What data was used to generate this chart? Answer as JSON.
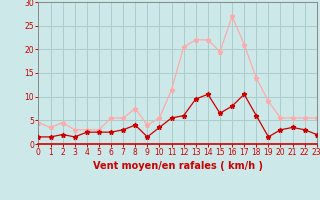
{
  "hours": [
    0,
    1,
    2,
    3,
    4,
    5,
    6,
    7,
    8,
    9,
    10,
    11,
    12,
    13,
    14,
    15,
    16,
    17,
    18,
    19,
    20,
    21,
    22,
    23
  ],
  "wind_avg": [
    1.5,
    1.5,
    2.0,
    1.5,
    2.5,
    2.5,
    2.5,
    3.0,
    4.0,
    1.5,
    3.5,
    5.5,
    6.0,
    9.5,
    10.5,
    6.5,
    8.0,
    10.5,
    6.0,
    1.5,
    3.0,
    3.5,
    3.0,
    2.0
  ],
  "wind_gusts": [
    4.5,
    3.5,
    4.5,
    3.0,
    3.0,
    3.0,
    5.5,
    5.5,
    7.5,
    4.0,
    5.5,
    11.5,
    20.5,
    22.0,
    22.0,
    19.5,
    27.0,
    21.0,
    14.0,
    9.0,
    5.5,
    5.5,
    5.5,
    5.5
  ],
  "avg_color": "#cc0000",
  "gust_color": "#ffaaaa",
  "bg_color": "#cce8e8",
  "grid_color": "#aacccc",
  "xlabel": "Vent moyen/en rafales ( km/h )",
  "xlabel_color": "#cc0000",
  "tick_color": "#cc0000",
  "ylim": [
    0,
    30
  ],
  "yticks": [
    0,
    5,
    10,
    15,
    20,
    25,
    30
  ],
  "spine_color": "#888888",
  "bottom_line_color": "#cc0000"
}
